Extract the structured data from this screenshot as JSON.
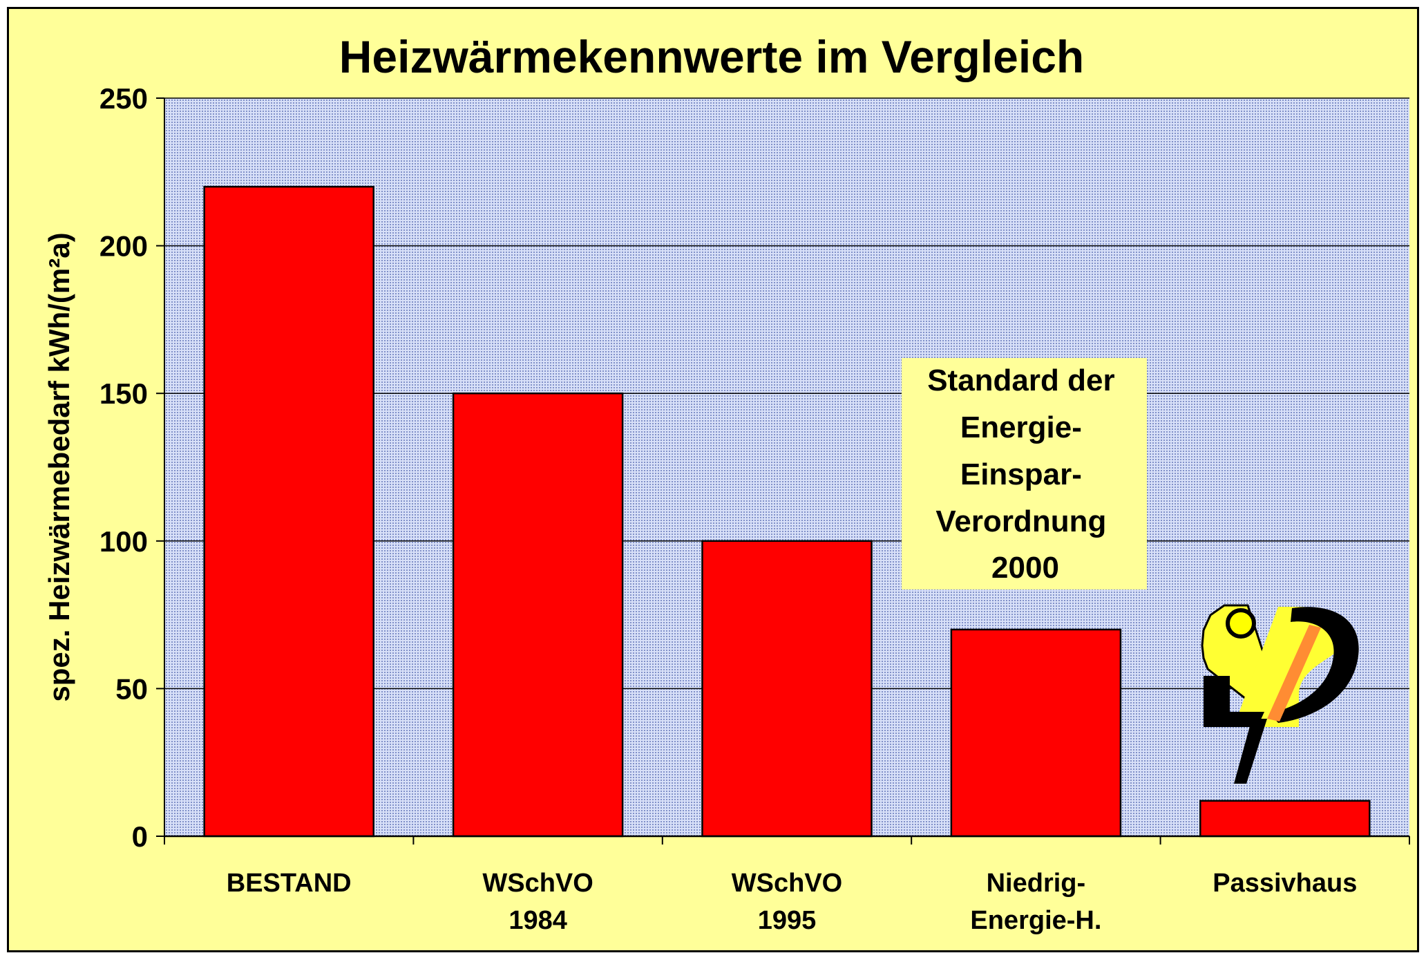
{
  "chart_data": {
    "type": "bar",
    "title": "Heizwärmekennwerte im Vergleich",
    "ylabel": "spez. Heizwärmebedarf  kWh/(m²a)",
    "xlabel": "",
    "ylim": [
      0,
      250
    ],
    "yticks": [
      "0",
      "50",
      "100",
      "150",
      "200",
      "250"
    ],
    "ytick_values": [
      0,
      50,
      100,
      150,
      200,
      250
    ],
    "categories": [
      [
        "BESTAND"
      ],
      [
        "WSchVO",
        "1984"
      ],
      [
        "WSchVO",
        "1995"
      ],
      [
        "Niedrig-",
        "Energie-H."
      ],
      [
        "Passivhaus"
      ]
    ],
    "values": [
      220,
      150,
      100,
      70,
      12
    ],
    "bar_color": "#ff0000",
    "plot_background": "#c8d2f0",
    "figure_background": "#ffff99",
    "grid": true,
    "annotation": [
      "Standard der",
      "Energie-",
      "Einspar-",
      "Verordnung",
      "2000"
    ],
    "logo": "passivhaus-logo"
  }
}
